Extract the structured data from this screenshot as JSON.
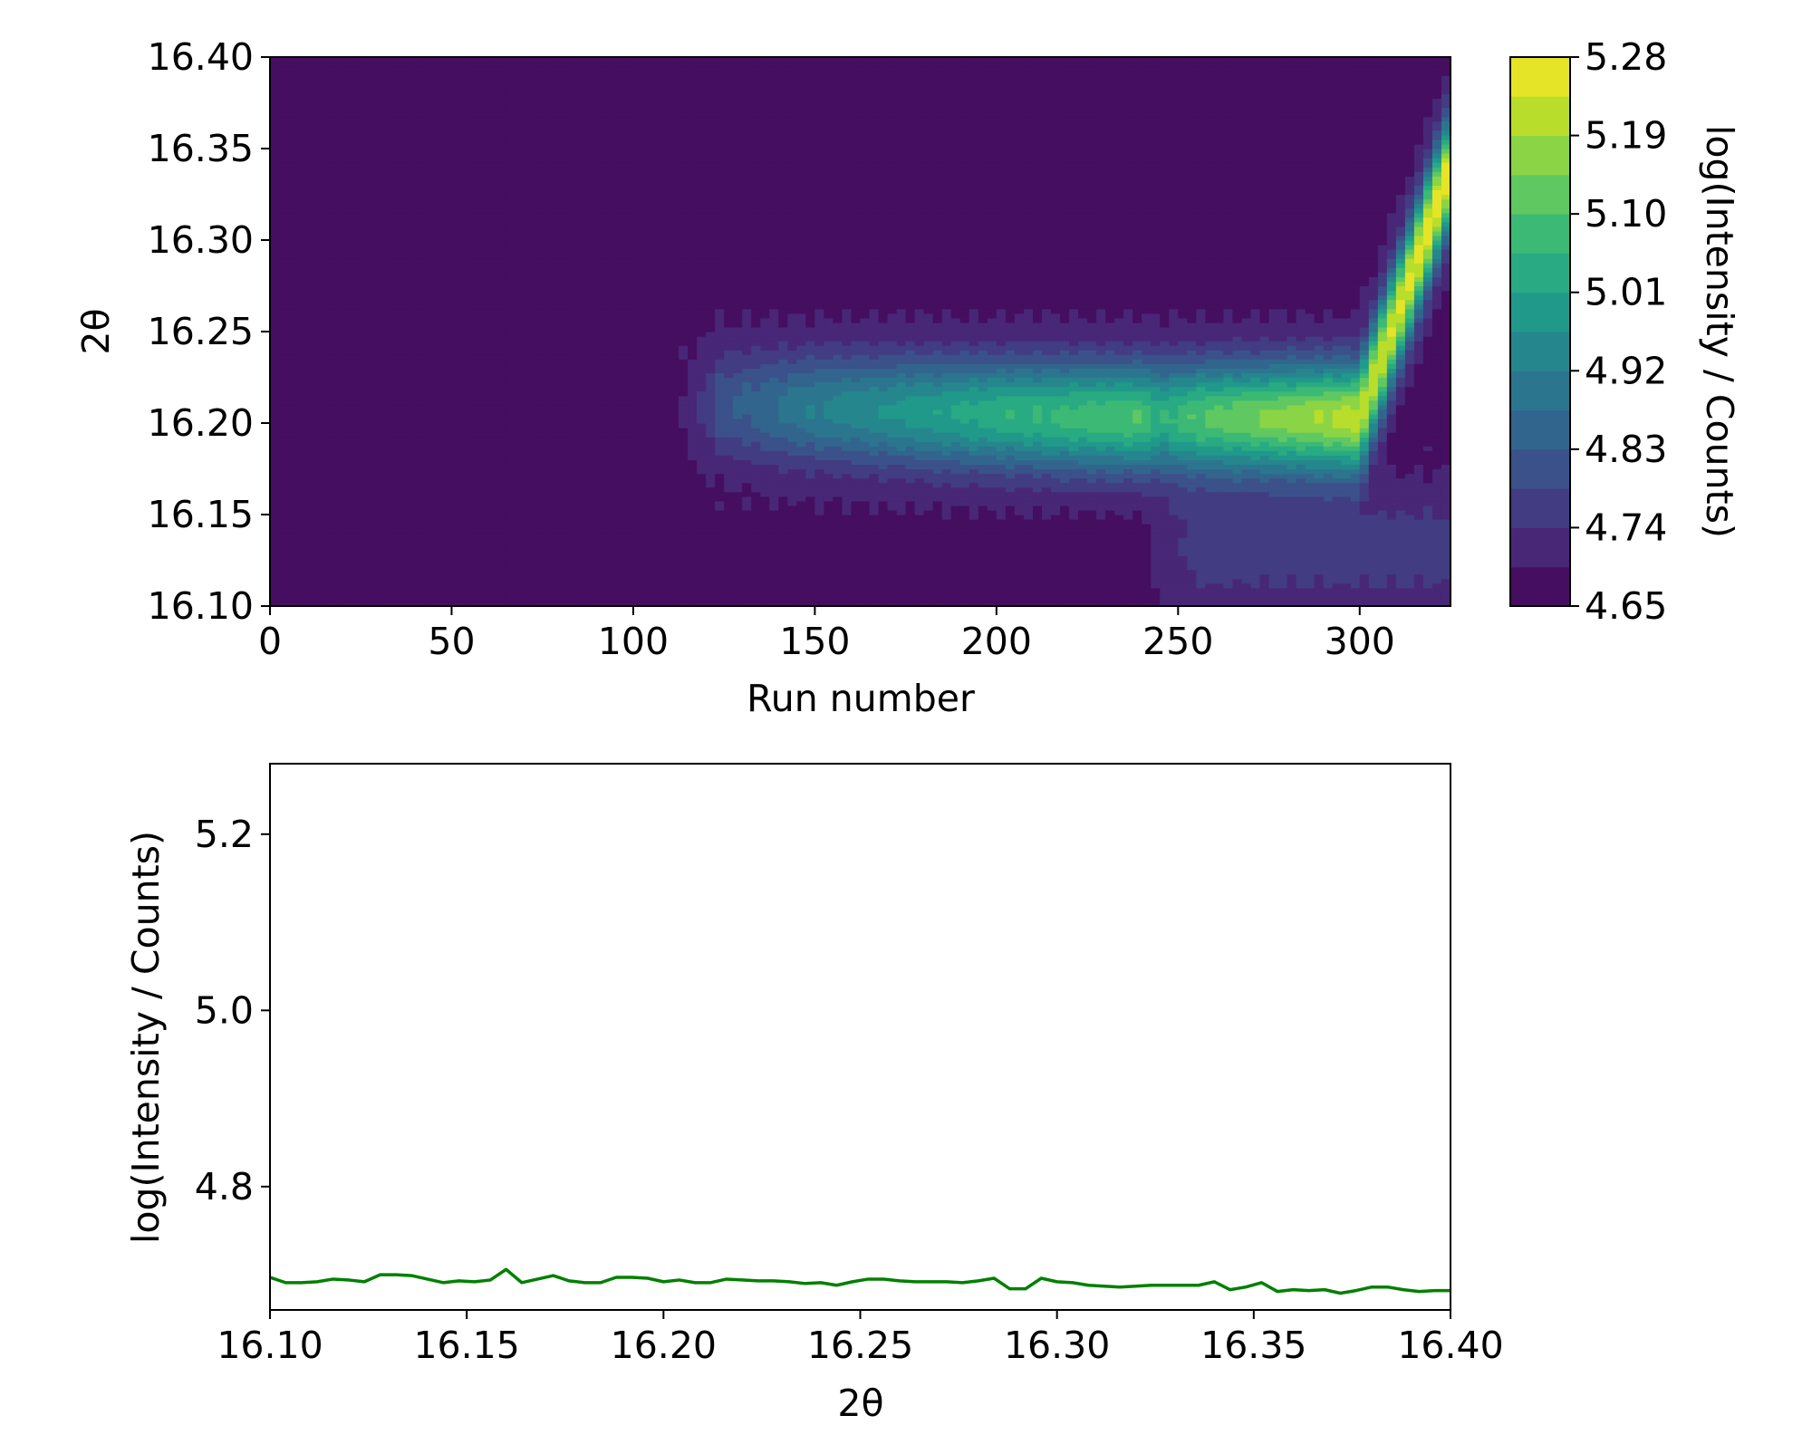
{
  "chart_data": [
    {
      "type": "heatmap",
      "title": "",
      "xlabel": "Run number",
      "ylabel": "2θ",
      "xlim": [
        0,
        325
      ],
      "ylim": [
        16.1,
        16.4
      ],
      "x_ticks": [
        "0",
        "50",
        "100",
        "150",
        "200",
        "250",
        "300"
      ],
      "y_ticks": [
        "16.10",
        "16.15",
        "16.20",
        "16.25",
        "16.30",
        "16.35",
        "16.40"
      ],
      "colormap": "viridis",
      "grid": false,
      "colorbar": {
        "label": "log(Intensity / Counts)",
        "range": [
          4.65,
          5.28
        ],
        "ticks": [
          "4.65",
          "4.74",
          "4.83",
          "4.92",
          "5.01",
          "5.10",
          "5.19",
          "5.28"
        ]
      },
      "peak_ridge": {
        "description_values": [
          {
            "run": 115,
            "two_theta": 16.21,
            "value": 4.78
          },
          {
            "run": 150,
            "two_theta": 16.208,
            "value": 4.92
          },
          {
            "run": 200,
            "two_theta": 16.205,
            "value": 5.04
          },
          {
            "run": 240,
            "two_theta": 16.203,
            "value": 5.1
          },
          {
            "run": 245,
            "two_theta": 16.203,
            "value": 5.04
          },
          {
            "run": 255,
            "two_theta": 16.203,
            "value": 5.1
          },
          {
            "run": 300,
            "two_theta": 16.203,
            "value": 5.22
          },
          {
            "run": 325,
            "two_theta": 16.34,
            "value": 5.28
          }
        ],
        "background": 4.68
      }
    },
    {
      "type": "line",
      "title": "",
      "xlabel": "2θ",
      "ylabel": "log(Intensity / Counts)",
      "xlim": [
        16.1,
        16.4
      ],
      "ylim": [
        4.66,
        5.28
      ],
      "x_ticks": [
        "16.10",
        "16.15",
        "16.20",
        "16.25",
        "16.30",
        "16.35",
        "16.40"
      ],
      "y_ticks": [
        "4.8",
        "5.0",
        "5.2"
      ],
      "grid": false,
      "series_color": "#008000",
      "x": [
        16.1,
        16.104,
        16.108,
        16.112,
        16.116,
        16.12,
        16.124,
        16.128,
        16.132,
        16.136,
        16.14,
        16.144,
        16.148,
        16.152,
        16.156,
        16.16,
        16.164,
        16.168,
        16.172,
        16.176,
        16.18,
        16.184,
        16.188,
        16.192,
        16.196,
        16.2,
        16.204,
        16.208,
        16.212,
        16.216,
        16.22,
        16.224,
        16.228,
        16.232,
        16.236,
        16.24,
        16.244,
        16.248,
        16.252,
        16.256,
        16.26,
        16.264,
        16.268,
        16.272,
        16.276,
        16.28,
        16.284,
        16.288,
        16.292,
        16.296,
        16.3,
        16.304,
        16.308,
        16.312,
        16.316,
        16.32,
        16.324,
        16.328,
        16.332,
        16.336,
        16.34,
        16.344,
        16.348,
        16.352,
        16.356,
        16.36,
        16.364,
        16.368,
        16.372,
        16.376,
        16.38,
        16.384,
        16.388,
        16.392,
        16.396,
        16.4
      ],
      "y": [
        4.697,
        4.691,
        4.691,
        4.692,
        4.695,
        4.694,
        4.692,
        4.7,
        4.7,
        4.699,
        4.695,
        4.691,
        4.693,
        4.692,
        4.694,
        4.706,
        4.691,
        4.695,
        4.699,
        4.693,
        4.691,
        4.691,
        4.697,
        4.697,
        4.696,
        4.692,
        4.694,
        4.691,
        4.691,
        4.695,
        4.694,
        4.693,
        4.693,
        4.692,
        4.69,
        4.691,
        4.688,
        4.692,
        4.695,
        4.695,
        4.693,
        4.692,
        4.692,
        4.692,
        4.691,
        4.693,
        4.696,
        4.684,
        4.684,
        4.696,
        4.692,
        4.691,
        4.688,
        4.687,
        4.686,
        4.687,
        4.688,
        4.688,
        4.688,
        4.688,
        4.692,
        4.683,
        4.686,
        4.691,
        4.681,
        4.683,
        4.682,
        4.683,
        4.679,
        4.682,
        4.686,
        4.686,
        4.683,
        4.681,
        4.682,
        4.682
      ]
    }
  ]
}
